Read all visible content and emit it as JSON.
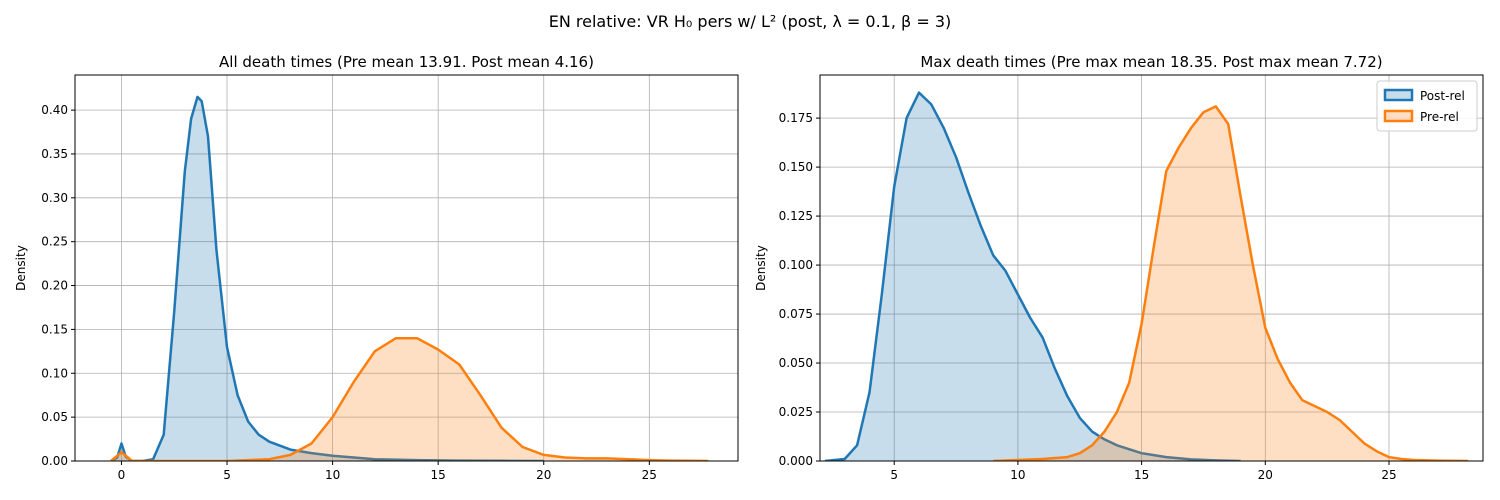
{
  "suptitle": "EN relative: VR H₀ pers w/ L² (post, λ = 0.1, β = 3)",
  "colors": {
    "post": "#1f77b4",
    "pre": "#ff7f0e",
    "post_fill": "#1f77b4",
    "pre_fill": "#ff7f0e"
  },
  "chart_data": [
    {
      "type": "area",
      "title": "All death times (Pre mean 13.91. Post mean 4.16)",
      "xlabel": "",
      "ylabel": "Density",
      "xlim": [
        -2.2,
        29.2
      ],
      "ylim": [
        0,
        0.44
      ],
      "xticks": [
        0,
        5,
        10,
        15,
        20,
        25
      ],
      "yticks": [
        0.0,
        0.05,
        0.1,
        0.15,
        0.2,
        0.25,
        0.3,
        0.35,
        0.4
      ],
      "ytick_labels": [
        "0.00",
        "0.05",
        "0.10",
        "0.15",
        "0.20",
        "0.25",
        "0.30",
        "0.35",
        "0.40"
      ],
      "grid": true,
      "legend": null,
      "series": [
        {
          "key": "post",
          "x": [
            -0.5,
            -0.2,
            0,
            0.2,
            0.5,
            1,
            1.5,
            2,
            2.5,
            3,
            3.3,
            3.6,
            3.8,
            4.1,
            4.5,
            5,
            5.5,
            6,
            6.5,
            7,
            8,
            9,
            10,
            11,
            12,
            14,
            16,
            18,
            20
          ],
          "y": [
            0,
            0.004,
            0.02,
            0.005,
            0,
            0,
            0.002,
            0.03,
            0.17,
            0.33,
            0.39,
            0.415,
            0.41,
            0.37,
            0.24,
            0.13,
            0.075,
            0.045,
            0.03,
            0.022,
            0.013,
            0.009,
            0.006,
            0.004,
            0.002,
            0.001,
            0.0005,
            0.0002,
            0
          ]
        },
        {
          "key": "pre",
          "x": [
            -0.5,
            0,
            0.5,
            1,
            2,
            3,
            4,
            5,
            6,
            7,
            8,
            9,
            10,
            11,
            12,
            13,
            14,
            15,
            16,
            17,
            18,
            19,
            20,
            21,
            22,
            23,
            24,
            25,
            26,
            27,
            27.8
          ],
          "y": [
            0,
            0.01,
            0,
            0,
            0,
            0,
            0,
            0,
            0.001,
            0.002,
            0.007,
            0.02,
            0.05,
            0.09,
            0.125,
            0.14,
            0.14,
            0.127,
            0.11,
            0.075,
            0.038,
            0.016,
            0.007,
            0.004,
            0.003,
            0.003,
            0.002,
            0.001,
            0.0005,
            0.0002,
            0
          ]
        }
      ]
    },
    {
      "type": "area",
      "title": "Max death times (Pre max mean 18.35. Post max mean 7.72)",
      "xlabel": "",
      "ylabel": "Density",
      "xlim": [
        2.0,
        28.8
      ],
      "ylim": [
        0,
        0.197
      ],
      "xticks": [
        5,
        10,
        15,
        20,
        25
      ],
      "yticks": [
        0.0,
        0.025,
        0.05,
        0.075,
        0.1,
        0.125,
        0.15,
        0.175
      ],
      "ytick_labels": [
        "0.000",
        "0.025",
        "0.050",
        "0.075",
        "0.100",
        "0.125",
        "0.150",
        "0.175"
      ],
      "grid": true,
      "legend": {
        "position": "top-right",
        "entries": [
          "Post-rel",
          "Pre-rel"
        ]
      },
      "series": [
        {
          "key": "post",
          "x": [
            2.2,
            3,
            3.5,
            4,
            4.5,
            5,
            5.5,
            6,
            6.5,
            7,
            7.5,
            8,
            8.5,
            9,
            9.5,
            10,
            10.5,
            11,
            11.5,
            12,
            12.5,
            13,
            13.5,
            14,
            15,
            16,
            17,
            18,
            19
          ],
          "y": [
            0,
            0.001,
            0.008,
            0.035,
            0.085,
            0.14,
            0.175,
            0.188,
            0.182,
            0.17,
            0.155,
            0.137,
            0.12,
            0.105,
            0.097,
            0.085,
            0.073,
            0.063,
            0.047,
            0.033,
            0.022,
            0.015,
            0.011,
            0.008,
            0.004,
            0.002,
            0.0008,
            0.0003,
            0
          ]
        },
        {
          "key": "pre",
          "x": [
            9,
            10,
            11,
            12,
            12.5,
            13,
            13.5,
            14,
            14.5,
            15,
            15.5,
            16,
            16.5,
            17,
            17.5,
            18,
            18.5,
            19,
            19.5,
            20,
            20.5,
            21,
            21.5,
            22,
            22.5,
            23,
            23.5,
            24,
            24.5,
            25,
            25.5,
            26,
            27,
            28.2
          ],
          "y": [
            0,
            0.0005,
            0.001,
            0.002,
            0.004,
            0.008,
            0.015,
            0.025,
            0.04,
            0.07,
            0.11,
            0.148,
            0.16,
            0.17,
            0.178,
            0.181,
            0.172,
            0.135,
            0.1,
            0.068,
            0.052,
            0.04,
            0.031,
            0.028,
            0.025,
            0.021,
            0.015,
            0.009,
            0.005,
            0.002,
            0.001,
            0.0005,
            0.0002,
            0
          ]
        }
      ]
    }
  ]
}
